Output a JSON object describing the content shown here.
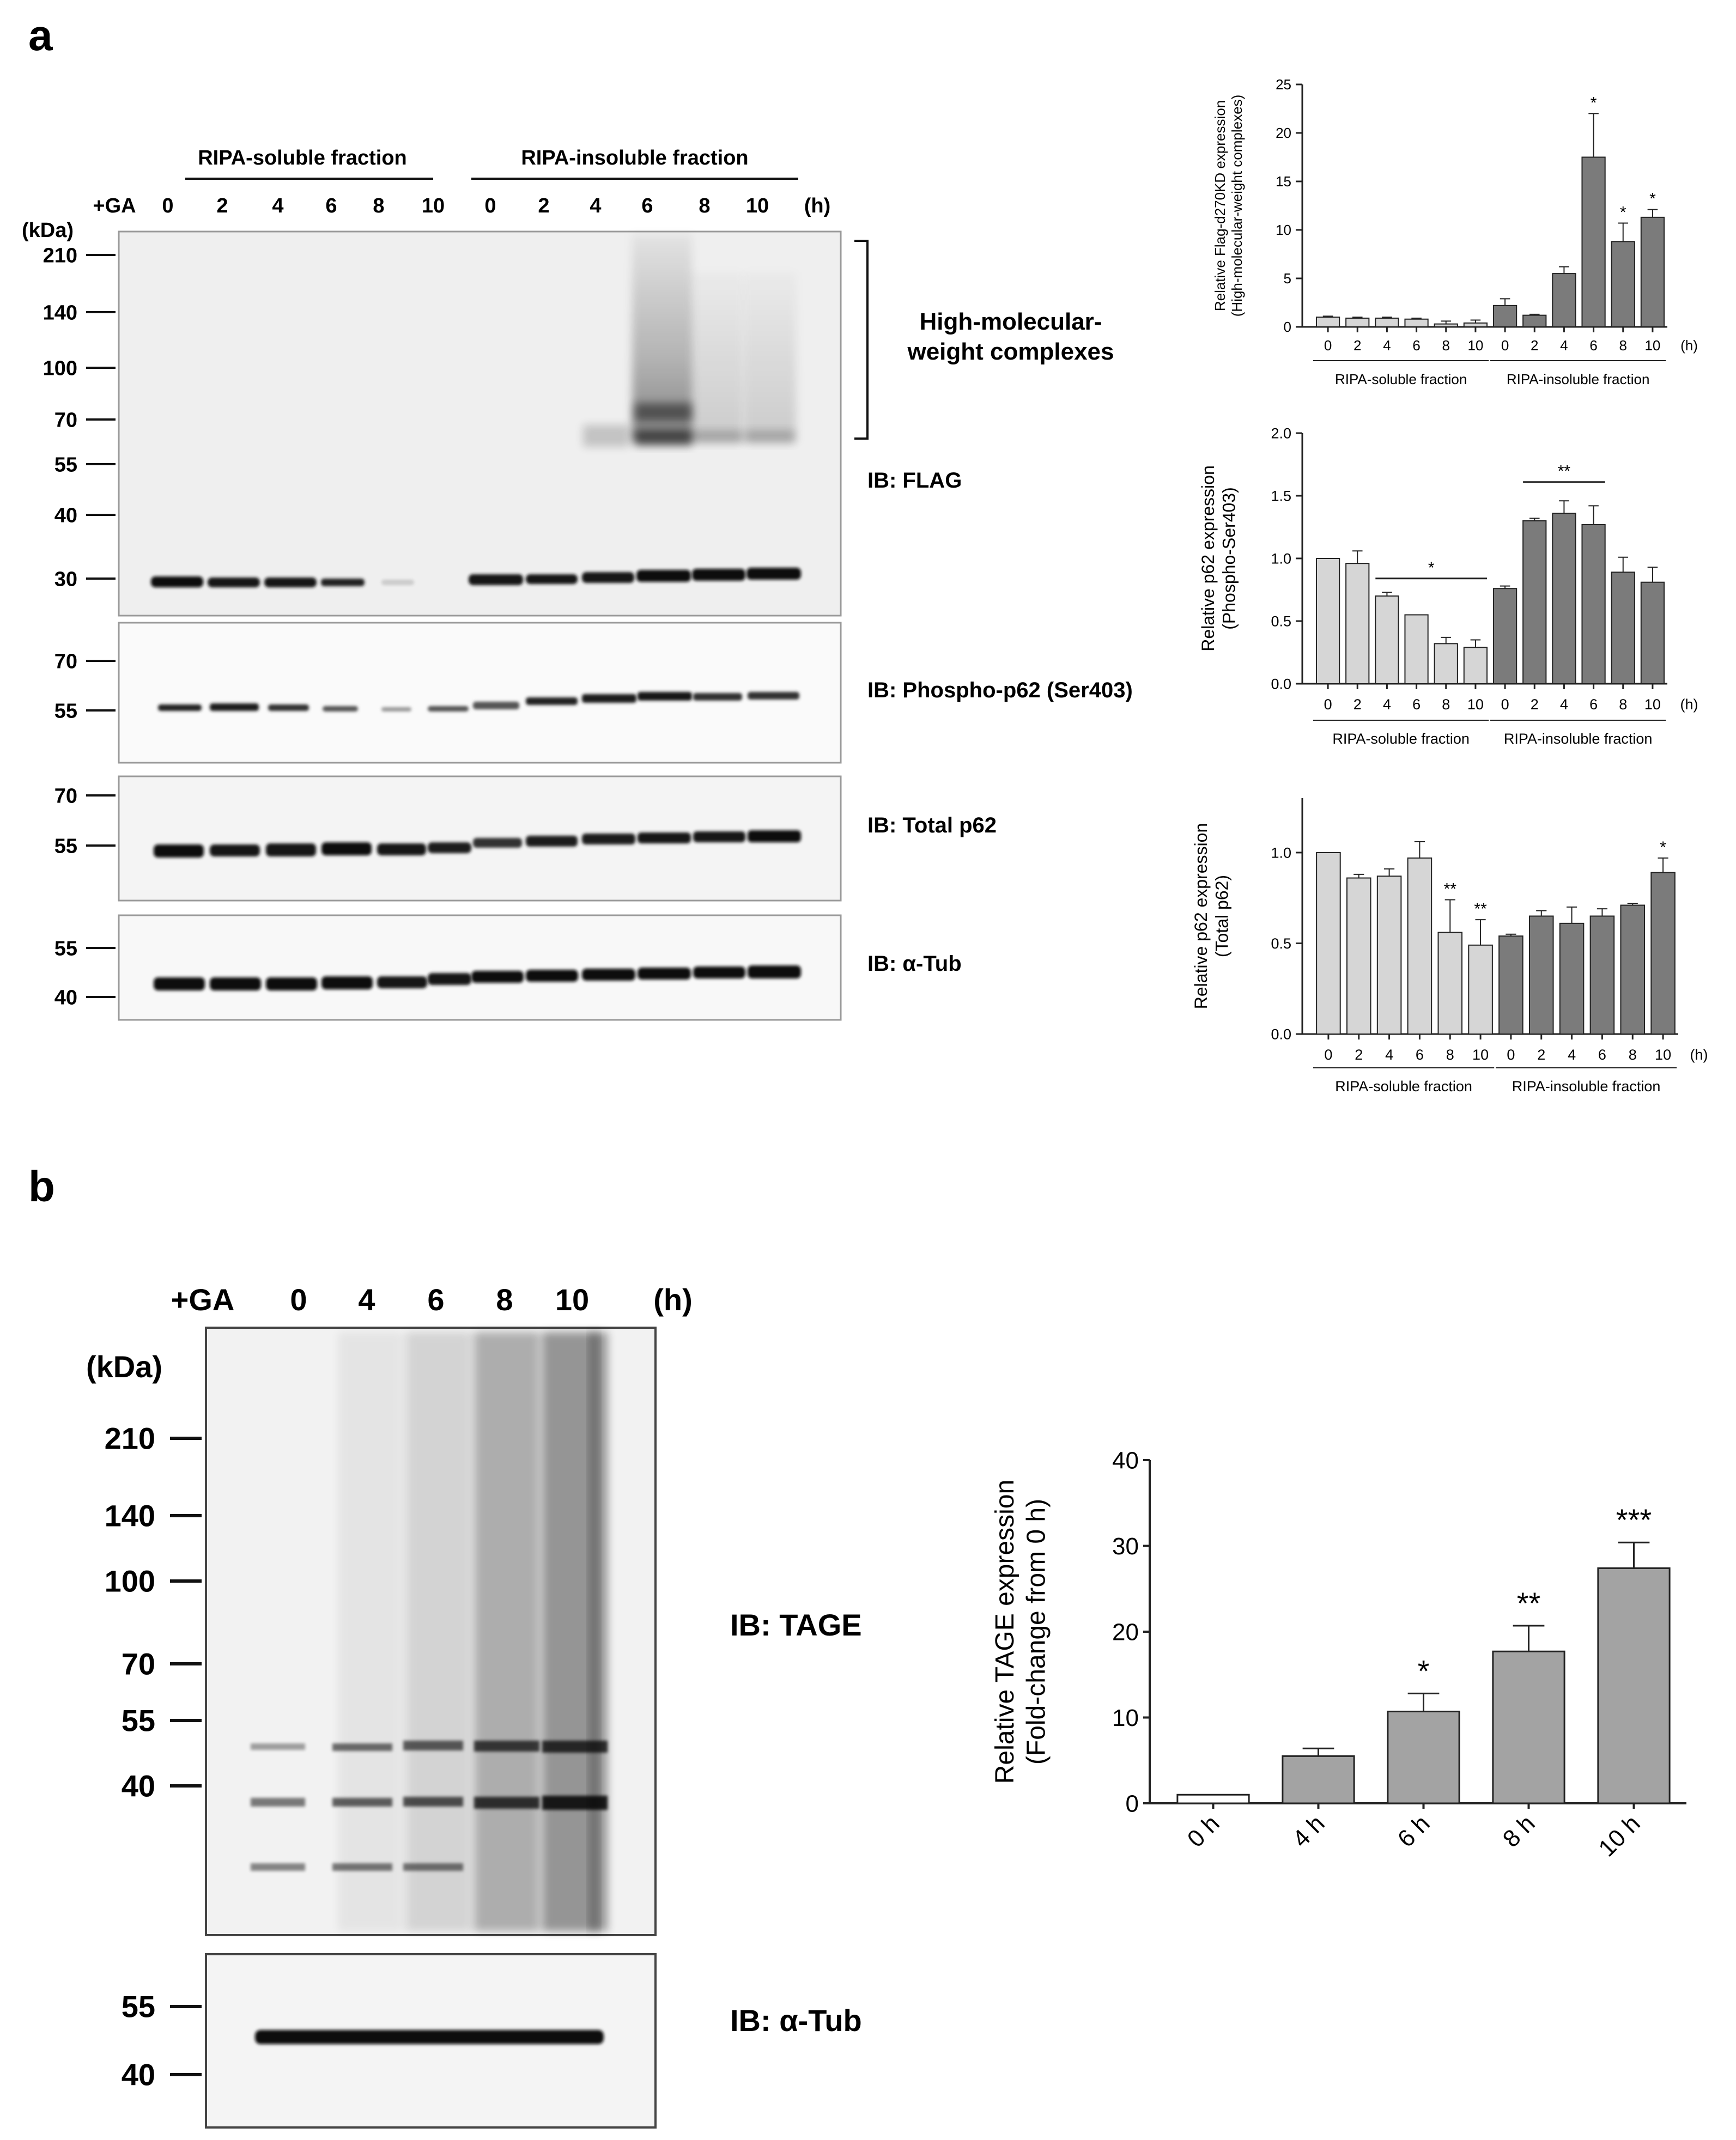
{
  "panel_a": {
    "label": "a",
    "blot": {
      "kda_label": "(kDa)",
      "ga_label": "+GA",
      "h_label": "(h)",
      "fraction_soluble": "RIPA-soluble fraction",
      "fraction_insoluble": "RIPA-insoluble fraction",
      "lanes": [
        "0",
        "2",
        "4",
        "6",
        "8",
        "10",
        "0",
        "2",
        "4",
        "6",
        "8",
        "10"
      ],
      "flag_markers": [
        "210",
        "140",
        "100",
        "70",
        "55",
        "40",
        "30"
      ],
      "phospho_markers": [
        "70",
        "55"
      ],
      "total_markers": [
        "70",
        "55"
      ],
      "tub_markers": [
        "55",
        "40"
      ],
      "hmw_line1": "High-molecular-",
      "hmw_line2": "weight complexes",
      "ib_flag": "IB: FLAG",
      "ib_phospho": "IB: Phospho-p62 (Ser403)",
      "ib_total": "IB: Total p62",
      "ib_tub": "IB: α-Tub"
    }
  },
  "panel_b": {
    "label": "b",
    "blot": {
      "kda_label": "(kDa)",
      "ga_label": "+GA",
      "h_label": "(h)",
      "lanes": [
        "0",
        "4",
        "6",
        "8",
        "10"
      ],
      "tage_markers": [
        "210",
        "140",
        "100",
        "70",
        "55",
        "40"
      ],
      "tub_markers": [
        "55",
        "40"
      ],
      "ib_tage": "IB: TAGE",
      "ib_tub": "IB: α-Tub"
    }
  },
  "chart_data": [
    {
      "type": "bar",
      "panel": "a",
      "ylabel_line1": "Relative Flag-d270KD expression",
      "ylabel_line2": "(High-molecular-weight complexes)",
      "ylim": [
        0,
        25
      ],
      "yticks": [
        "0",
        "5",
        "10",
        "15",
        "20",
        "25"
      ],
      "unit": "(h)",
      "groups": [
        "RIPA-soluble fraction",
        "RIPA-insoluble fraction"
      ],
      "categories": [
        "0",
        "2",
        "4",
        "6",
        "8",
        "10",
        "0",
        "2",
        "4",
        "6",
        "8",
        "10"
      ],
      "values": [
        1.0,
        0.9,
        0.9,
        0.8,
        0.3,
        0.4,
        2.2,
        1.2,
        5.5,
        17.5,
        8.8,
        11.3
      ],
      "errors": [
        0.1,
        0.1,
        0.1,
        0.1,
        0.3,
        0.3,
        0.7,
        0.1,
        0.7,
        4.5,
        1.9,
        0.8
      ],
      "fills": [
        "#d6d6d6",
        "#d6d6d6",
        "#d6d6d6",
        "#d6d6d6",
        "#d6d6d6",
        "#d6d6d6",
        "#7b7b7b",
        "#7b7b7b",
        "#7b7b7b",
        "#7b7b7b",
        "#7b7b7b",
        "#7b7b7b"
      ],
      "marks": [
        "",
        "",
        "",
        "",
        "",
        "",
        "",
        "",
        "",
        "*",
        "*",
        "*"
      ]
    },
    {
      "type": "bar",
      "panel": "a",
      "ylabel_line1": "Relative p62 expression",
      "ylabel_line2": "(Phospho-Ser403)",
      "ylim": [
        0,
        2.0
      ],
      "yticks": [
        "0.0",
        "0.5",
        "1.0",
        "1.5",
        "2.0"
      ],
      "unit": "(h)",
      "groups": [
        "RIPA-soluble fraction",
        "RIPA-insoluble fraction"
      ],
      "categories": [
        "0",
        "2",
        "4",
        "6",
        "8",
        "10",
        "0",
        "2",
        "4",
        "6",
        "8",
        "10"
      ],
      "values": [
        1.0,
        0.96,
        0.7,
        0.55,
        0.32,
        0.29,
        0.76,
        1.3,
        1.36,
        1.27,
        0.89,
        0.81
      ],
      "errors": [
        0.0,
        0.1,
        0.03,
        0.0,
        0.05,
        0.06,
        0.02,
        0.02,
        0.1,
        0.15,
        0.12,
        0.12
      ],
      "fills": [
        "#d6d6d6",
        "#d6d6d6",
        "#d6d6d6",
        "#d6d6d6",
        "#d6d6d6",
        "#d6d6d6",
        "#7b7b7b",
        "#7b7b7b",
        "#7b7b7b",
        "#7b7b7b",
        "#7b7b7b",
        "#7b7b7b"
      ],
      "marks": [
        "",
        "",
        "",
        "",
        "",
        "",
        "",
        "",
        "",
        "",
        "",
        ""
      ],
      "brackets": [
        {
          "from": 2,
          "to": 5,
          "y": 0.84,
          "label": "*"
        },
        {
          "from": 7,
          "to": 9,
          "y": 1.61,
          "label": "**"
        }
      ]
    },
    {
      "type": "bar",
      "panel": "a",
      "ylabel_line1": "Relative p62 expression",
      "ylabel_line2": "(Total p62)",
      "ylim": [
        0,
        1.3
      ],
      "yticks": [
        "0.0",
        "0.5",
        "1.0"
      ],
      "ytick_values": [
        0,
        0.5,
        1.0
      ],
      "unit": "(h)",
      "groups": [
        "RIPA-soluble fraction",
        "RIPA-insoluble fraction"
      ],
      "categories": [
        "0",
        "2",
        "4",
        "6",
        "8",
        "10",
        "0",
        "2",
        "4",
        "6",
        "8",
        "10"
      ],
      "values": [
        1.0,
        0.86,
        0.87,
        0.97,
        0.56,
        0.49,
        0.54,
        0.65,
        0.61,
        0.65,
        0.71,
        0.89
      ],
      "errors": [
        0.0,
        0.02,
        0.04,
        0.09,
        0.18,
        0.14,
        0.01,
        0.03,
        0.09,
        0.04,
        0.01,
        0.08
      ],
      "fills": [
        "#d6d6d6",
        "#d6d6d6",
        "#d6d6d6",
        "#d6d6d6",
        "#d6d6d6",
        "#d6d6d6",
        "#7b7b7b",
        "#7b7b7b",
        "#7b7b7b",
        "#7b7b7b",
        "#7b7b7b",
        "#7b7b7b"
      ],
      "marks": [
        "",
        "",
        "",
        "",
        "**",
        "**",
        "",
        "",
        "",
        "",
        "",
        "*"
      ]
    },
    {
      "type": "bar",
      "panel": "b",
      "ylabel_line1": "Relative TAGE expression",
      "ylabel_line2": "(Fold-change from 0 h)",
      "ylim": [
        0,
        40
      ],
      "yticks": [
        "0",
        "10",
        "20",
        "30",
        "40"
      ],
      "categories": [
        "0 h",
        "4 h",
        "6 h",
        "8 h",
        "10 h"
      ],
      "values": [
        1.0,
        5.5,
        10.7,
        17.7,
        27.4
      ],
      "errors": [
        0.0,
        0.9,
        2.1,
        3.0,
        3.0
      ],
      "fills": [
        "#ffffff",
        "#a3a3a3",
        "#a3a3a3",
        "#a3a3a3",
        "#a3a3a3"
      ],
      "marks": [
        "",
        "",
        "*",
        "**",
        "***"
      ]
    }
  ]
}
